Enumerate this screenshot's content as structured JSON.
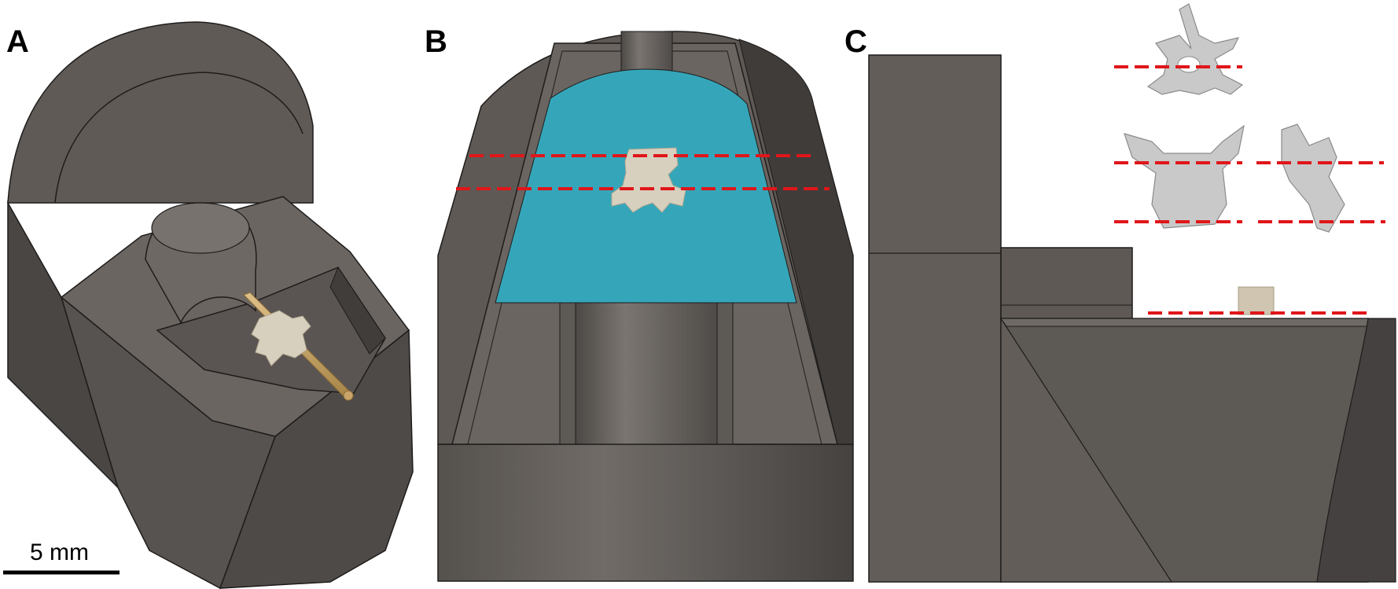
{
  "panels": {
    "a": {
      "label": "A"
    },
    "b": {
      "label": "B"
    },
    "c": {
      "label": "C"
    }
  },
  "scale_bar": {
    "label": "5 mm"
  },
  "colors": {
    "mold_body": "#625d59",
    "mold_dark": "#474441",
    "mold_light": "#7a7570",
    "embedding_medium": "#35a6b9",
    "bone": "#d8d0bf",
    "rod": "#c8a46a",
    "section_line": "#e0161a",
    "scan_gray": "#c9c9c9"
  }
}
